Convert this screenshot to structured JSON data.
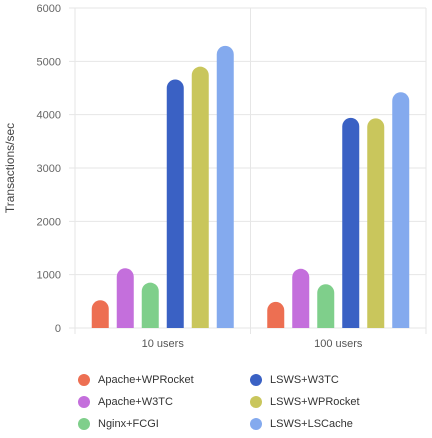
{
  "chart_data": {
    "type": "bar",
    "ylabel": "Transactions/sec",
    "xlabel": "",
    "ylim": [
      0,
      6000
    ],
    "yticks": [
      0,
      1000,
      2000,
      3000,
      4000,
      5000,
      6000
    ],
    "grid": true,
    "legend_position": "bottom",
    "categories": [
      "10 users",
      "100 users"
    ],
    "series": [
      {
        "name": "Apache+WPRocket",
        "color": "#ed6f52",
        "values": [
          520,
          490
        ]
      },
      {
        "name": "Apache+W3TC",
        "color": "#c46fdc",
        "values": [
          1120,
          1110
        ]
      },
      {
        "name": "Nginx+FCGI",
        "color": "#7fcf8b",
        "values": [
          850,
          820
        ]
      },
      {
        "name": "LSWS+W3TC",
        "color": "#3a61c4",
        "values": [
          4660,
          3940
        ]
      },
      {
        "name": "LSWS+WPRocket",
        "color": "#c9c65c",
        "values": [
          4900,
          3930
        ]
      },
      {
        "name": "LSWS+LSCache",
        "color": "#84aaee",
        "values": [
          5290,
          4420
        ]
      }
    ]
  }
}
